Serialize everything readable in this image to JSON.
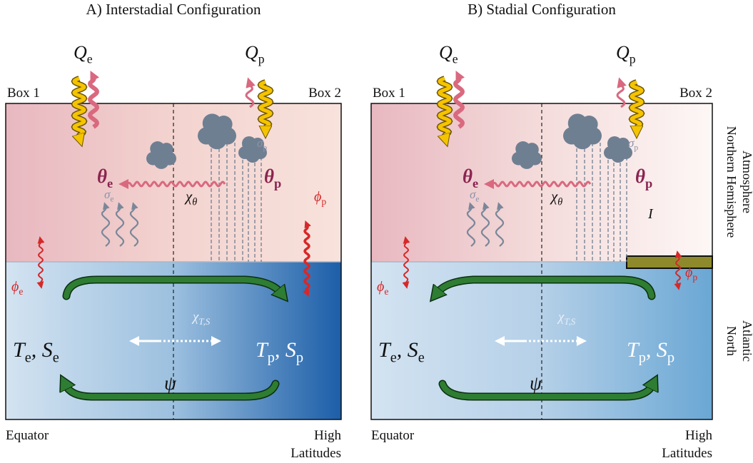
{
  "panels": [
    {
      "title": "A) Interstadial Configuration",
      "box1": "Box 1",
      "box2": "Box 2",
      "equator": "Equator",
      "high_latitudes": [
        "High",
        "Latitudes"
      ],
      "labels": {
        "Q_e": [
          {
            "text": "Q"
          },
          {
            "sub": "e"
          }
        ],
        "Q_p": [
          {
            "text": "Q"
          },
          {
            "sub": "p"
          }
        ],
        "theta_e": [
          {
            "text": "θ"
          },
          {
            "sub": "e"
          }
        ],
        "theta_p": [
          {
            "text": "θ"
          },
          {
            "sub": "p"
          }
        ],
        "sigma_e": [
          {
            "text": "σ"
          },
          {
            "sub": "e"
          }
        ],
        "sigma_p": [
          {
            "text": "σ"
          },
          {
            "sub": "p"
          }
        ],
        "chi_theta": [
          {
            "text": "χ"
          },
          {
            "sub": "θ"
          }
        ],
        "phi_e": [
          {
            "text": "ϕ"
          },
          {
            "sub": "e"
          }
        ],
        "phi_p": [
          {
            "text": "ϕ"
          },
          {
            "sub": "p"
          }
        ],
        "chi_TS": [
          {
            "text": "χ"
          },
          {
            "sub": "T,S"
          }
        ],
        "TS_e": [
          {
            "text": "T"
          },
          {
            "sub": "e"
          },
          {
            "text": ", S"
          },
          {
            "sub": "e"
          }
        ],
        "TS_p": [
          {
            "text": "T"
          },
          {
            "sub": "p"
          },
          {
            "text": ", S"
          },
          {
            "sub": "p"
          }
        ],
        "psi": [
          {
            "text": "ψ"
          }
        ]
      }
    },
    {
      "title": "B) Stadial Configuration",
      "box1": "Box 1",
      "box2": "Box 2",
      "equator": "Equator",
      "high_latitudes": [
        "High",
        "Latitudes"
      ],
      "labels": {
        "Q_e": [
          {
            "text": "Q"
          },
          {
            "sub": "e"
          }
        ],
        "Q_p": [
          {
            "text": "Q"
          },
          {
            "sub": "p"
          }
        ],
        "theta_e": [
          {
            "text": "θ"
          },
          {
            "sub": "e"
          }
        ],
        "theta_p": [
          {
            "text": "θ"
          },
          {
            "sub": "p"
          }
        ],
        "sigma_e": [
          {
            "text": "σ"
          },
          {
            "sub": "e"
          }
        ],
        "sigma_p": [
          {
            "text": "σ"
          },
          {
            "sub": "p"
          }
        ],
        "chi_theta": [
          {
            "text": "χ"
          },
          {
            "sub": "θ"
          }
        ],
        "phi_e": [
          {
            "text": "ϕ"
          },
          {
            "sub": "e"
          }
        ],
        "phi_p": [
          {
            "text": "ϕ"
          },
          {
            "sub": "p"
          }
        ],
        "chi_TS": [
          {
            "text": "χ"
          },
          {
            "sub": "T,S"
          }
        ],
        "TS_e": [
          {
            "text": "T"
          },
          {
            "sub": "e"
          },
          {
            "text": ", S"
          },
          {
            "sub": "e"
          }
        ],
        "TS_p": [
          {
            "text": "T"
          },
          {
            "sub": "p"
          },
          {
            "text": ", S"
          },
          {
            "sub": "p"
          }
        ],
        "psi": [
          {
            "text": "ψ"
          }
        ],
        "I": [
          {
            "text": "I"
          }
        ]
      }
    }
  ],
  "side_labels": {
    "atmosphere": [
      "Northern Hemisphere",
      "Atmosphere"
    ],
    "ocean": [
      "North",
      "Atlantic"
    ]
  }
}
